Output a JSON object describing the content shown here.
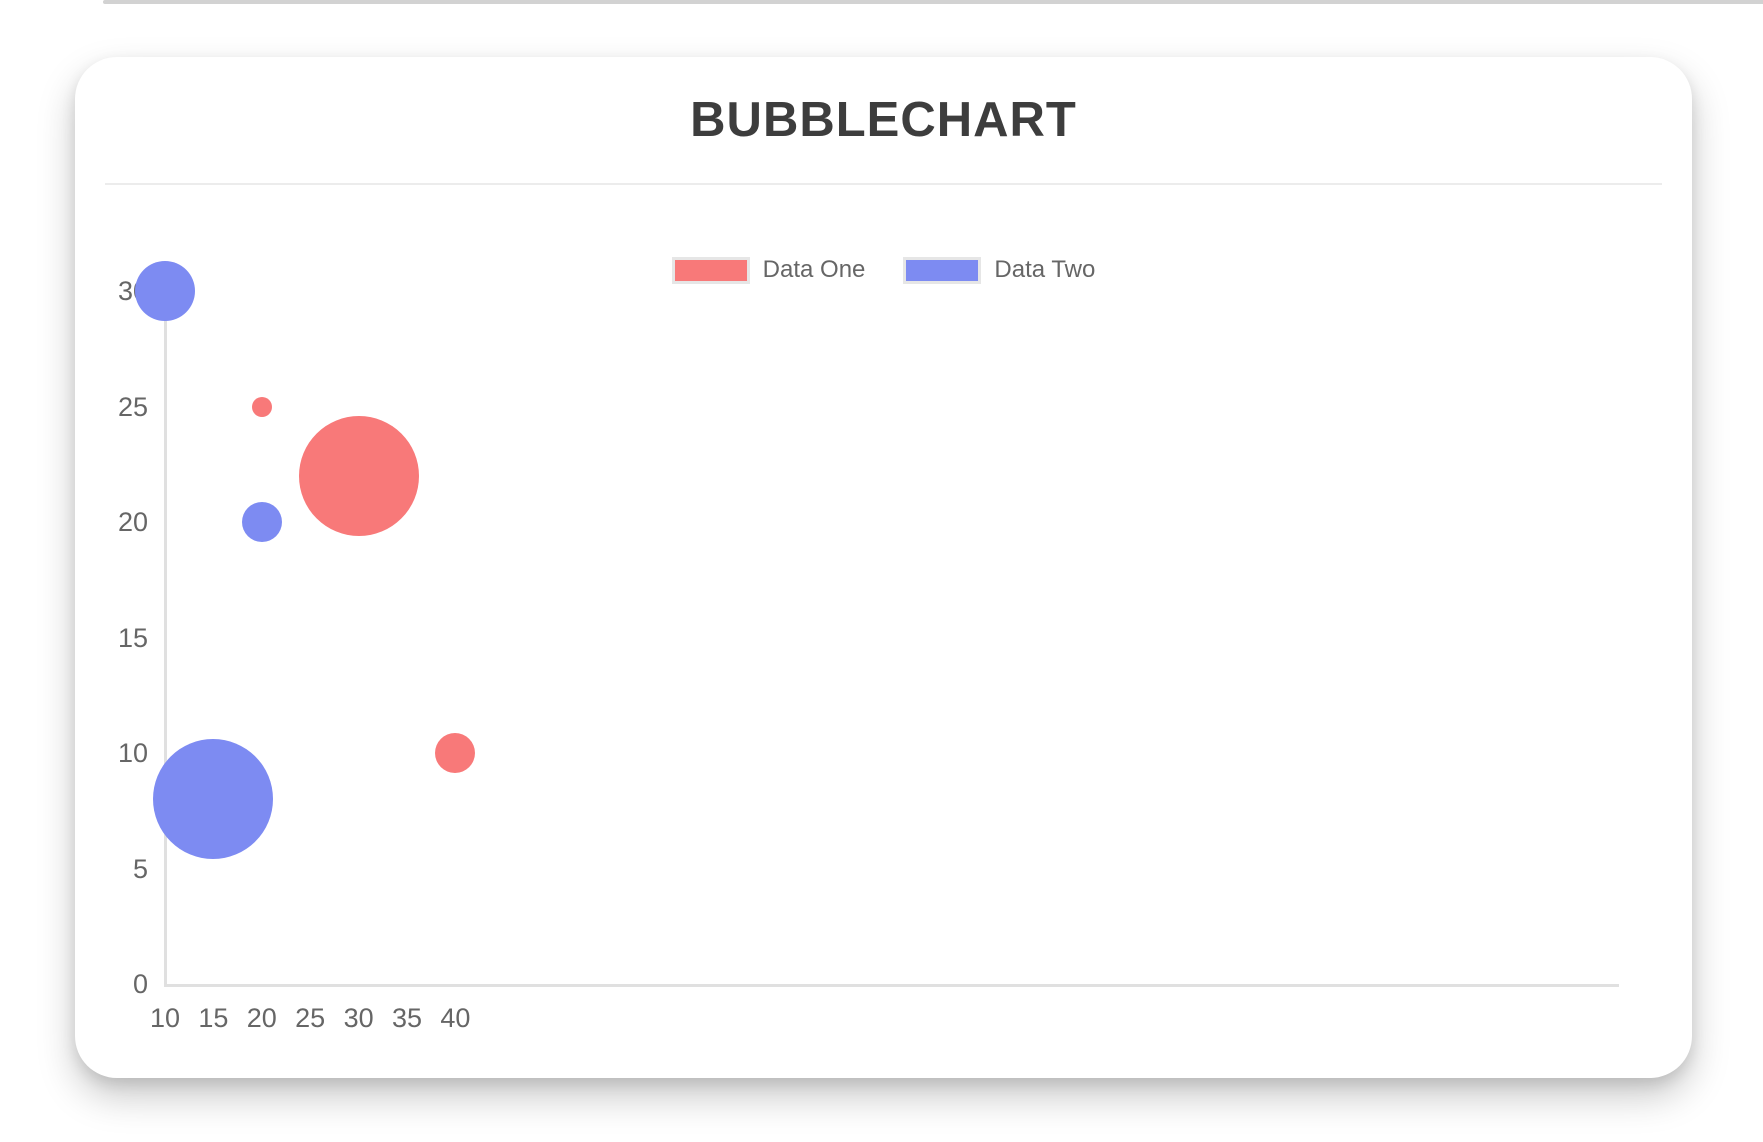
{
  "card": {
    "title": "BUBBLECHART"
  },
  "chart_data": {
    "type": "bubble",
    "title": "BUBBLECHART",
    "xlabel": "",
    "ylabel": "",
    "xlim": [
      10,
      40
    ],
    "ylim": [
      0,
      30
    ],
    "x_ticks": [
      "10",
      "15",
      "20",
      "25",
      "30",
      "35",
      "40"
    ],
    "y_ticks": [
      "0",
      "5",
      "10",
      "15",
      "20",
      "25",
      "30"
    ],
    "grid": false,
    "legend_position": "top-center",
    "axis_color": "#e0e0e0",
    "tick_label_color": "#666666",
    "title_color": "#3d3d3d",
    "series": [
      {
        "name": "Data One",
        "color": "#f87979",
        "points": [
          {
            "x": 20,
            "y": 25,
            "r": 10
          },
          {
            "x": 30,
            "y": 22,
            "r": 60
          },
          {
            "x": 40,
            "y": 10,
            "r": 20
          }
        ]
      },
      {
        "name": "Data Two",
        "color": "#7d8bf2",
        "points": [
          {
            "x": 10,
            "y": 30,
            "r": 30
          },
          {
            "x": 20,
            "y": 20,
            "r": 20
          },
          {
            "x": 15,
            "y": 8,
            "r": 60
          }
        ]
      }
    ]
  }
}
